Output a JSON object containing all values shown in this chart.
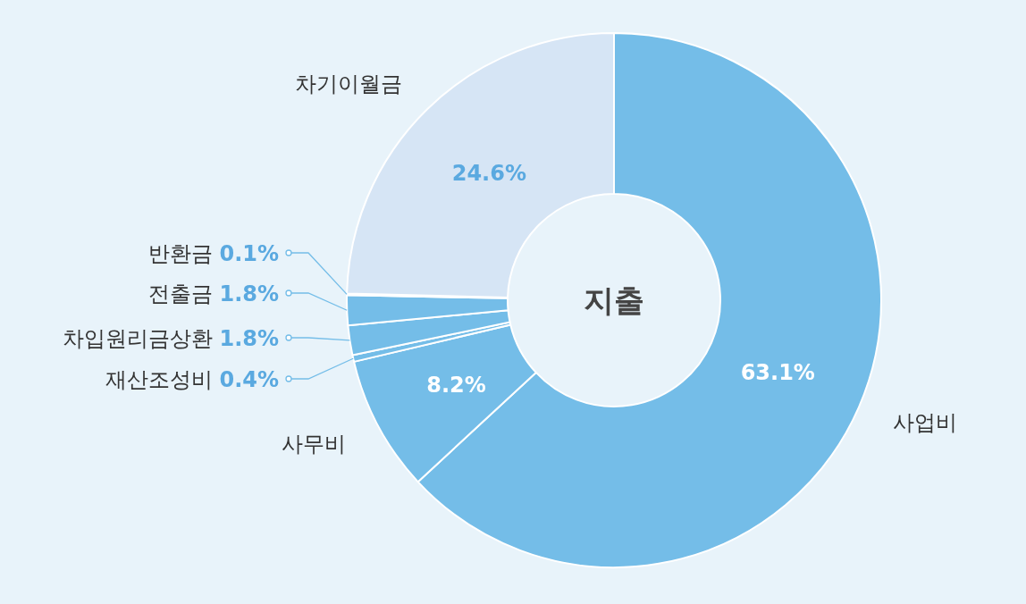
{
  "chart_data": {
    "type": "donut",
    "title": "지출",
    "categories": [
      "사업비",
      "사무비",
      "재산조성비",
      "차입원리금상환",
      "전출금",
      "반환금",
      "차기이월금"
    ],
    "values": [
      63.1,
      8.2,
      0.4,
      1.8,
      1.8,
      0.1,
      24.6
    ],
    "value_labels": [
      "63.1%",
      "8.2%",
      "0.4%",
      "1.8%",
      "1.8%",
      "0.1%",
      "24.6%"
    ],
    "colors": [
      "#74bde8",
      "#74bde8",
      "#74bde8",
      "#74bde8",
      "#74bde8",
      "#74bde8",
      "#d6e5f5"
    ]
  }
}
